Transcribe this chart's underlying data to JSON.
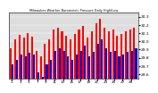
{
  "title": "Milwaukee Weather Barometric Pressure Daily High/Low",
  "highs": [
    29.92,
    30.02,
    30.08,
    30.05,
    30.1,
    30.06,
    29.88,
    29.82,
    29.97,
    30.02,
    30.15,
    30.17,
    30.12,
    30.07,
    30.02,
    30.09,
    30.15,
    30.19,
    30.05,
    30.12,
    30.22,
    30.28,
    30.17,
    30.12,
    30.15,
    30.07,
    30.09,
    30.12,
    30.15,
    30.17
  ],
  "lows": [
    29.72,
    29.77,
    29.84,
    29.82,
    29.86,
    29.84,
    29.62,
    29.57,
    29.72,
    29.77,
    29.88,
    29.92,
    29.88,
    29.82,
    29.77,
    29.84,
    29.88,
    29.95,
    29.82,
    29.87,
    29.97,
    30.02,
    29.92,
    29.87,
    29.88,
    29.82,
    29.84,
    29.87,
    29.88,
    29.92
  ],
  "bar_color_high": "#FF0000",
  "bar_color_low": "#0000CC",
  "yticks": [
    30.3,
    30.2,
    30.1,
    30.0,
    29.9,
    29.8,
    29.7,
    29.6
  ],
  "ylim": [
    29.55,
    30.35
  ],
  "background_color": "#FFFFFF",
  "plot_bg": "#DDDDDD",
  "n_bars": 30
}
